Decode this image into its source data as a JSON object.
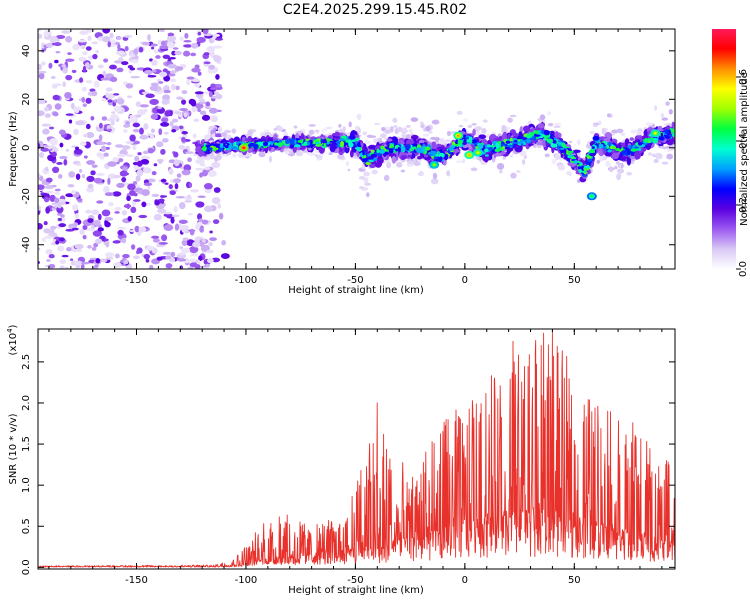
{
  "figure_title": "C2E4.2025.299.15.45.R02",
  "chart_data": [
    {
      "type": "heatmap",
      "name": "spectrogram",
      "xlabel": "Height of straight line (km)",
      "ylabel": "Frequency (Hz)",
      "xlim": [
        -195,
        96
      ],
      "ylim": [
        -50,
        49
      ],
      "xticks": [
        -150,
        -100,
        -50,
        0,
        50
      ],
      "xtick_labels": [
        "-150",
        "-100",
        "-50",
        "0",
        "50"
      ],
      "yticks": [
        -40,
        -20,
        0,
        20,
        40
      ],
      "ytick_labels": [
        "-40",
        "-20",
        "0",
        "20",
        "40"
      ],
      "noise_region_x": [
        -195,
        -112
      ],
      "signal_region_x": [
        -122,
        96
      ],
      "centerline": [
        {
          "x": -120,
          "y": 0
        },
        {
          "x": -100,
          "y": 1
        },
        {
          "x": -80,
          "y": 2
        },
        {
          "x": -60,
          "y": 2
        },
        {
          "x": -50,
          "y": 3
        },
        {
          "x": -45,
          "y": -5
        },
        {
          "x": -35,
          "y": 0
        },
        {
          "x": -20,
          "y": 0
        },
        {
          "x": -10,
          "y": -4
        },
        {
          "x": 0,
          "y": 4
        },
        {
          "x": 10,
          "y": -1
        },
        {
          "x": 25,
          "y": 3
        },
        {
          "x": 35,
          "y": 6
        },
        {
          "x": 45,
          "y": 0
        },
        {
          "x": 55,
          "y": -10
        },
        {
          "x": 60,
          "y": 2
        },
        {
          "x": 75,
          "y": -2
        },
        {
          "x": 85,
          "y": 4
        },
        {
          "x": 96,
          "y": 6
        }
      ],
      "peaks": [
        {
          "x": -101,
          "y": 0,
          "amp": 0.72
        },
        {
          "x": -3,
          "y": 5,
          "amp": 0.62
        },
        {
          "x": 2,
          "y": -3,
          "amp": 0.6
        },
        {
          "x": 6,
          "y": -2,
          "amp": 0.55
        },
        {
          "x": -14,
          "y": -7,
          "amp": 0.5
        },
        {
          "x": 87,
          "y": 6,
          "amp": 0.55
        },
        {
          "x": 58,
          "y": -20,
          "amp": 0.45
        }
      ],
      "colorbar": {
        "label": "Normalized spectral amplitude",
        "range": [
          0.0,
          0.75
        ],
        "ticks": [
          0.0,
          0.2,
          0.4,
          0.6
        ],
        "tick_labels": [
          "0.0",
          "0.2",
          "0.4",
          "0.6"
        ],
        "colors": [
          "#ffffff",
          "#d9c8f5",
          "#9b59f0",
          "#5a00e0",
          "#0000ff",
          "#00a0ff",
          "#00ffd0",
          "#00ff40",
          "#a0ff00",
          "#ffff00",
          "#ff9000",
          "#ff0000",
          "#ff1a5a"
        ]
      }
    },
    {
      "type": "line",
      "name": "snr",
      "color": "#e8312b",
      "xlabel": "Height of straight line (km)",
      "ylabel": "SNR (10 * v/v)",
      "multiplier_label": "(x10",
      "multiplier_exp": "4",
      "multiplier_close": ")",
      "xlim": [
        -195,
        96
      ],
      "ylim": [
        -0.02,
        2.9
      ],
      "xticks": [
        -150,
        -100,
        -50,
        0,
        50
      ],
      "xtick_labels": [
        "-150",
        "-100",
        "-50",
        "0",
        "50"
      ],
      "yticks": [
        0.0,
        0.5,
        1.0,
        1.5,
        2.0,
        2.5
      ],
      "ytick_labels": [
        "0.0",
        "0.5",
        "1.0",
        "1.5",
        "2.0",
        "2.5"
      ],
      "envelope": [
        {
          "x": -195,
          "base": 0.01,
          "peak": 0.02
        },
        {
          "x": -115,
          "base": 0.01,
          "peak": 0.03
        },
        {
          "x": -105,
          "base": 0.03,
          "peak": 0.12
        },
        {
          "x": -95,
          "base": 0.08,
          "peak": 0.45
        },
        {
          "x": -85,
          "base": 0.12,
          "peak": 0.75
        },
        {
          "x": -70,
          "base": 0.15,
          "peak": 0.5
        },
        {
          "x": -55,
          "base": 0.2,
          "peak": 0.65
        },
        {
          "x": -40,
          "base": 0.25,
          "peak": 1.9
        },
        {
          "x": -25,
          "base": 0.35,
          "peak": 1.1
        },
        {
          "x": -10,
          "base": 0.45,
          "peak": 1.8
        },
        {
          "x": 0,
          "base": 0.55,
          "peak": 2.0
        },
        {
          "x": 10,
          "base": 0.6,
          "peak": 2.3
        },
        {
          "x": 25,
          "base": 0.65,
          "peak": 2.7
        },
        {
          "x": 40,
          "base": 0.6,
          "peak": 2.85
        },
        {
          "x": 55,
          "base": 0.55,
          "peak": 2.2
        },
        {
          "x": 70,
          "base": 0.45,
          "peak": 2.0
        },
        {
          "x": 85,
          "base": 0.35,
          "peak": 1.5
        },
        {
          "x": 96,
          "base": 0.3,
          "peak": 1.2
        }
      ],
      "notable_spikes": [
        {
          "x": -40,
          "y": 2.0
        },
        {
          "x": 22,
          "y": 2.75
        },
        {
          "x": 36,
          "y": 2.85
        },
        {
          "x": 40,
          "y": 2.9
        }
      ]
    }
  ]
}
